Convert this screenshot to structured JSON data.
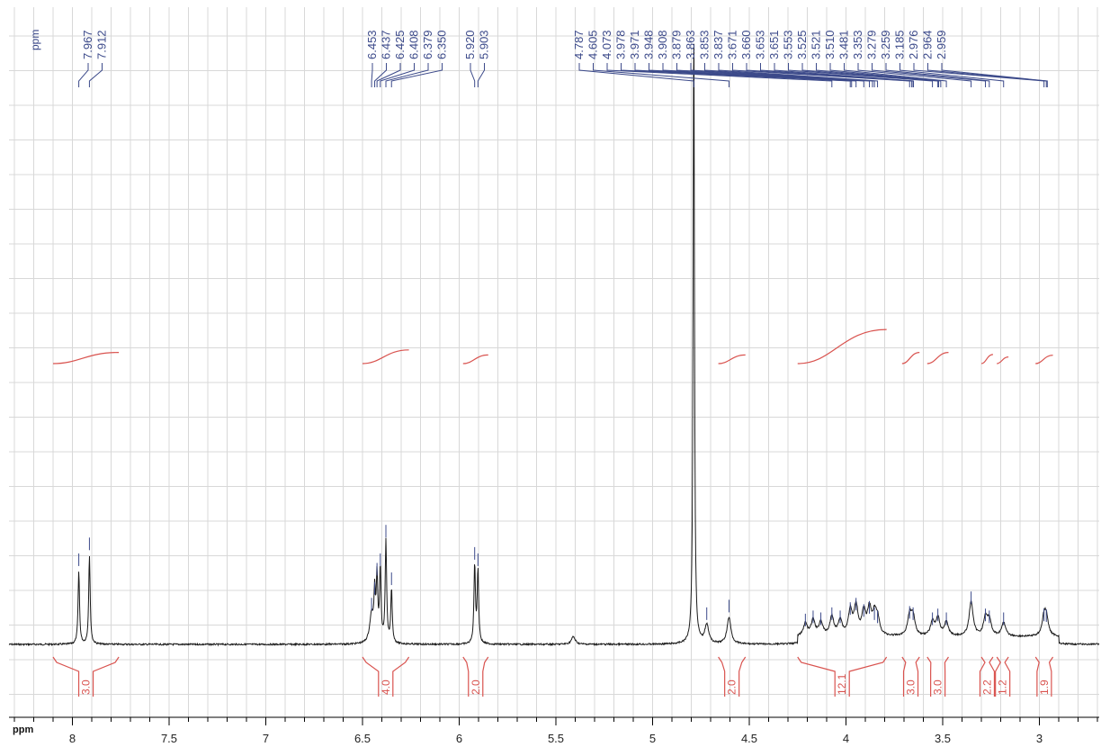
{
  "colors": {
    "spectrum": "#1a1a1a",
    "peak_annotation": "#3c4a8a",
    "integral": "#d9534f",
    "grid": "#d8d8d8",
    "axis": "#000000"
  },
  "chart_data": {
    "type": "line",
    "title": "",
    "xlabel": "ppm",
    "ylabel": "",
    "peak_unit_label": "ppm",
    "x_reversed": true,
    "xlim": [
      8.3,
      2.7
    ],
    "grid": true,
    "x_ticks": [
      {
        "value": 8,
        "label": "8"
      },
      {
        "value": 7.5,
        "label": "7.5"
      },
      {
        "value": 7,
        "label": "7"
      },
      {
        "value": 6.5,
        "label": "6.5"
      },
      {
        "value": 6,
        "label": "6"
      },
      {
        "value": 5.5,
        "label": "5.5"
      },
      {
        "value": 5,
        "label": "5"
      },
      {
        "value": 4.5,
        "label": "4.5"
      },
      {
        "value": 4,
        "label": "4"
      },
      {
        "value": 3.5,
        "label": "3.5"
      },
      {
        "value": 3,
        "label": "3"
      }
    ],
    "peak_labels": [
      "7.967",
      "7.912",
      "6.453",
      "6.437",
      "6.425",
      "6.408",
      "6.379",
      "6.350",
      "5.920",
      "5.903",
      "4.787",
      "4.605",
      "4.073",
      "3.978",
      "3.971",
      "3.948",
      "3.908",
      "3.879",
      "3.863",
      "3.853",
      "3.837",
      "3.671",
      "3.660",
      "3.653",
      "3.651",
      "3.553",
      "3.525",
      "3.521",
      "3.510",
      "3.481",
      "3.353",
      "3.279",
      "3.259",
      "3.185",
      "2.976",
      "2.964",
      "2.959"
    ],
    "peaks": [
      {
        "ppm": 7.967,
        "height": 0.115
      },
      {
        "ppm": 7.912,
        "height": 0.14
      },
      {
        "ppm": 6.453,
        "height": 0.045
      },
      {
        "ppm": 6.437,
        "height": 0.07
      },
      {
        "ppm": 6.425,
        "height": 0.1
      },
      {
        "ppm": 6.408,
        "height": 0.115
      },
      {
        "ppm": 6.379,
        "height": 0.16
      },
      {
        "ppm": 6.35,
        "height": 0.085
      },
      {
        "ppm": 5.92,
        "height": 0.125
      },
      {
        "ppm": 5.903,
        "height": 0.115
      },
      {
        "ppm": 5.41,
        "height": 0.012
      },
      {
        "ppm": 4.787,
        "height": 1.0
      },
      {
        "ppm": 4.72,
        "height": 0.03
      },
      {
        "ppm": 4.605,
        "height": 0.042
      },
      {
        "ppm": 4.21,
        "height": 0.02
      },
      {
        "ppm": 4.17,
        "height": 0.025
      },
      {
        "ppm": 4.13,
        "height": 0.022
      },
      {
        "ppm": 4.073,
        "height": 0.03
      },
      {
        "ppm": 4.03,
        "height": 0.025
      },
      {
        "ppm": 3.978,
        "height": 0.038
      },
      {
        "ppm": 3.948,
        "height": 0.045
      },
      {
        "ppm": 3.908,
        "height": 0.035
      },
      {
        "ppm": 3.879,
        "height": 0.04
      },
      {
        "ppm": 3.853,
        "height": 0.03
      },
      {
        "ppm": 3.837,
        "height": 0.025
      },
      {
        "ppm": 3.671,
        "height": 0.032
      },
      {
        "ppm": 3.653,
        "height": 0.03
      },
      {
        "ppm": 3.553,
        "height": 0.022
      },
      {
        "ppm": 3.525,
        "height": 0.028
      },
      {
        "ppm": 3.481,
        "height": 0.022
      },
      {
        "ppm": 3.353,
        "height": 0.055
      },
      {
        "ppm": 3.279,
        "height": 0.028
      },
      {
        "ppm": 3.259,
        "height": 0.025
      },
      {
        "ppm": 3.185,
        "height": 0.022
      },
      {
        "ppm": 2.976,
        "height": 0.028
      },
      {
        "ppm": 2.964,
        "height": 0.027
      }
    ],
    "integrals": [
      {
        "from": 8.1,
        "to": 7.76,
        "value": "3.0"
      },
      {
        "from": 6.5,
        "to": 6.26,
        "value": "4.0"
      },
      {
        "from": 5.98,
        "to": 5.85,
        "value": "2.0"
      },
      {
        "from": 4.66,
        "to": 4.52,
        "value": "2.0"
      },
      {
        "from": 4.25,
        "to": 3.79,
        "value": "12.1"
      },
      {
        "from": 3.71,
        "to": 3.62,
        "value": "3.0"
      },
      {
        "from": 3.58,
        "to": 3.47,
        "value": "3.0"
      },
      {
        "from": 3.3,
        "to": 3.24,
        "value": "2.2"
      },
      {
        "from": 3.22,
        "to": 3.16,
        "value": "1.2"
      },
      {
        "from": 3.02,
        "to": 2.93,
        "value": "1.9"
      }
    ]
  }
}
